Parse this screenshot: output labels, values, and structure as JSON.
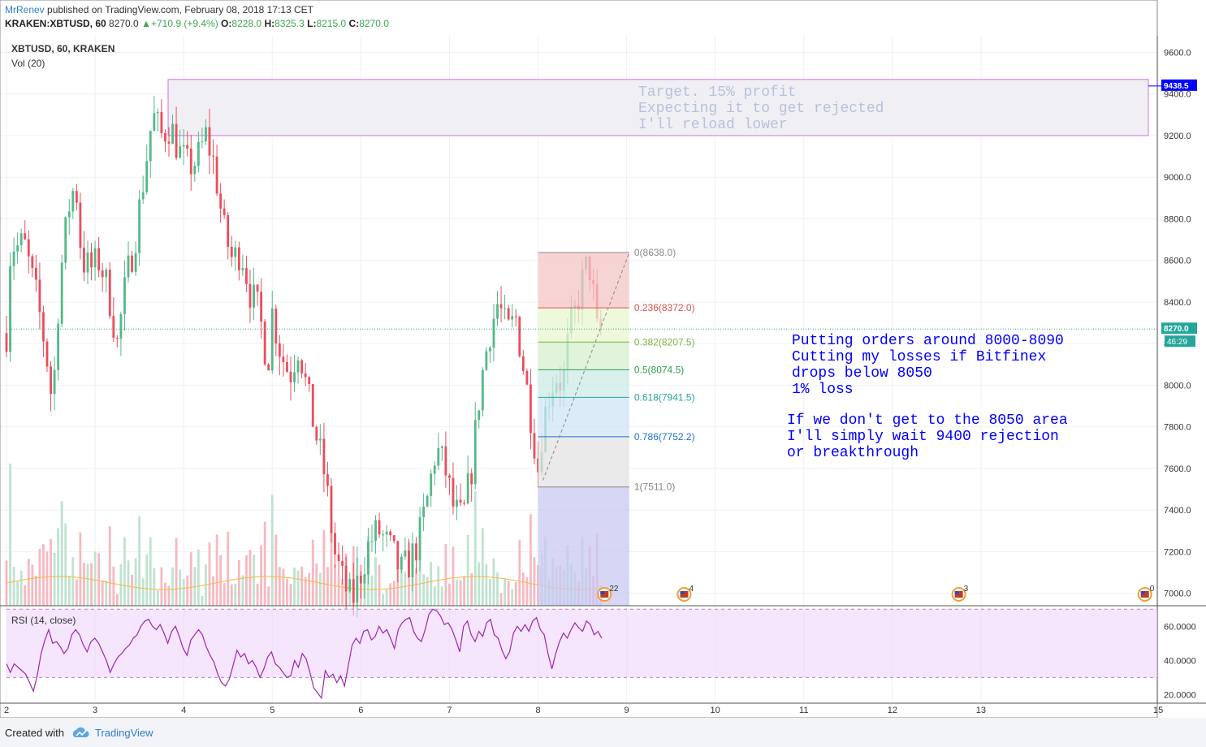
{
  "header": {
    "author": "MrRenev",
    "published_text": "published on TradingView.com, February 08, 2018 17:13 CET",
    "symbol": "KRAKEN:XBTUSD, 60",
    "last": "8270.0",
    "change": "+710.9 (+9.4%)",
    "ohlc": [
      {
        "label": "O:",
        "value": "8228.0"
      },
      {
        "label": "H:",
        "value": "8325.3"
      },
      {
        "label": "L:",
        "value": "8215.0"
      },
      {
        "label": "C:",
        "value": "8270.0"
      }
    ]
  },
  "legend": {
    "main_label": "XBTUSD, 60, KRAKEN",
    "vol_label": "Vol (20)",
    "rsi_label": "RSI (14, close)"
  },
  "footer": {
    "created_with": "Created with",
    "brand": "TradingView"
  },
  "colors": {
    "up": "#53b987",
    "down": "#eb4d5c",
    "rsi_line": "#9c27b0",
    "rsi_band": "#efd4fb",
    "annotation": "#0000ff",
    "target_text": "#b8c0dc",
    "last_price_tag": "#26a69a",
    "target_price_tag": "#0000ff"
  },
  "chart_data": {
    "type": "candlestick",
    "symbol": "XBTUSD",
    "interval": "60",
    "exchange": "KRAKEN",
    "y_ticks": [
      "9600.0",
      "9400.0",
      "9200.0",
      "9000.0",
      "8800.0",
      "8600.0",
      "8400.0",
      "8200.0",
      "8000.0",
      "7800.0",
      "7600.0",
      "7400.0",
      "7200.0",
      "7000.0"
    ],
    "ylim": [
      6940,
      9680
    ],
    "x_ticks": [
      "2",
      "3",
      "4",
      "5",
      "6",
      "7",
      "8",
      "9",
      "10",
      "11",
      "12",
      "13",
      "15"
    ],
    "x_day_values": [
      2,
      3,
      4,
      5,
      6,
      7,
      8,
      9,
      10,
      11,
      12,
      13,
      15
    ],
    "xlim": [
      2.0,
      14.99
    ],
    "close_path": [
      [
        2.0,
        8250
      ],
      [
        2.05,
        8700
      ],
      [
        2.1,
        8660
      ],
      [
        2.2,
        8680
      ],
      [
        2.35,
        8400
      ],
      [
        2.45,
        8150
      ],
      [
        2.52,
        7900
      ],
      [
        2.6,
        8500
      ],
      [
        2.7,
        8850
      ],
      [
        2.78,
        8980
      ],
      [
        2.85,
        8600
      ],
      [
        2.95,
        8560
      ],
      [
        3.05,
        8600
      ],
      [
        3.15,
        8450
      ],
      [
        3.25,
        8200
      ],
      [
        3.35,
        8500
      ],
      [
        3.45,
        8700
      ],
      [
        3.55,
        9000
      ],
      [
        3.65,
        9300
      ],
      [
        3.75,
        9200
      ],
      [
        3.85,
        9250
      ],
      [
        3.95,
        9120
      ],
      [
        4.05,
        9050
      ],
      [
        4.15,
        9080
      ],
      [
        4.25,
        9200
      ],
      [
        4.35,
        9050
      ],
      [
        4.45,
        8750
      ],
      [
        4.55,
        8600
      ],
      [
        4.65,
        8650
      ],
      [
        4.75,
        8450
      ],
      [
        4.85,
        8350
      ],
      [
        4.95,
        8100
      ],
      [
        5.0,
        8350
      ],
      [
        5.1,
        8150
      ],
      [
        5.2,
        8050
      ],
      [
        5.3,
        8200
      ],
      [
        5.4,
        7950
      ],
      [
        5.5,
        7750
      ],
      [
        5.6,
        7550
      ],
      [
        5.7,
        7200
      ],
      [
        5.8,
        7050
      ],
      [
        5.9,
        6960
      ],
      [
        6.0,
        7100
      ],
      [
        6.1,
        7250
      ],
      [
        6.2,
        7300
      ],
      [
        6.35,
        7200
      ],
      [
        6.45,
        7100
      ],
      [
        6.55,
        7150
      ],
      [
        6.65,
        7250
      ],
      [
        6.75,
        7450
      ],
      [
        6.85,
        7700
      ],
      [
        6.95,
        7600
      ],
      [
        7.05,
        7400
      ],
      [
        7.15,
        7350
      ],
      [
        7.25,
        7600
      ],
      [
        7.35,
        8000
      ],
      [
        7.45,
        8250
      ],
      [
        7.55,
        8400
      ],
      [
        7.65,
        8250
      ],
      [
        7.75,
        8320
      ],
      [
        7.85,
        8050
      ],
      [
        7.92,
        7850
      ],
      [
        8.0,
        7600
      ],
      [
        8.05,
        7800
      ],
      [
        8.12,
        7950
      ],
      [
        8.2,
        8050
      ],
      [
        8.28,
        8000
      ],
      [
        8.35,
        8250
      ],
      [
        8.42,
        8350
      ],
      [
        8.5,
        8500
      ],
      [
        8.57,
        8600
      ],
      [
        8.62,
        8450
      ],
      [
        8.67,
        8240
      ],
      [
        8.72,
        8270
      ]
    ],
    "high_marker": {
      "value": "9438.5"
    },
    "last_price": {
      "value": "8270.0",
      "countdown": "46:29"
    },
    "fibonacci_retracement": {
      "start": 7511.0,
      "end": 8638.0,
      "levels": [
        {
          "ratio": 0,
          "price": 8638.0,
          "label": "0(8638.0)",
          "color": "#888888",
          "fill": "#f4c6c6"
        },
        {
          "ratio": 0.236,
          "price": 8372.0,
          "label": "0.236(8372.0)",
          "color": "#e05050",
          "fill": "#e8f5cf"
        },
        {
          "ratio": 0.382,
          "price": 8207.5,
          "label": "0.382(8207.5)",
          "color": "#7cb342",
          "fill": "#d6f0d0"
        },
        {
          "ratio": 0.5,
          "price": 8074.5,
          "label": "0.5(8074.5)",
          "color": "#2e9e4e",
          "fill": "#ccebe6"
        },
        {
          "ratio": 0.618,
          "price": 7941.5,
          "label": "0.618(7941.5)",
          "color": "#26a69a",
          "fill": "#cfe6f6"
        },
        {
          "ratio": 0.786,
          "price": 7752.2,
          "label": "0.786(7752.2)",
          "color": "#1e6fd0",
          "fill": "#e3e3e3"
        },
        {
          "ratio": 1,
          "price": 7511.0,
          "label": "1(7511.0)",
          "color": "#888888",
          "fill": "#c9c8f2"
        }
      ]
    },
    "target_zone": {
      "top": 9470,
      "bottom": 9200
    },
    "annotations": {
      "target": [
        "Target. 15% profit",
        "Expecting it to get rejected",
        "I'll reload lower"
      ],
      "orders": [
        "Putting orders around 8000-8090",
        "Cutting my losses if Bitfinex",
        "drops below 8050",
        "1% loss"
      ],
      "fallback": [
        "If we don't get to the 8050 area",
        "I'll simply wait 9400 rejection",
        "or breakthrough"
      ]
    },
    "events": [
      {
        "day": 8.75,
        "count": "22"
      },
      {
        "day": 9.65,
        "count": "4"
      },
      {
        "day": 12.75,
        "count": "3"
      },
      {
        "day": 14.85,
        "count": "0"
      }
    ],
    "rsi": {
      "y_ticks": [
        "60.0000",
        "40.0000",
        "20.0000"
      ],
      "ylim": [
        15,
        72
      ],
      "overbought": 70,
      "oversold": 30,
      "values": [
        38,
        33,
        38,
        36,
        34,
        32,
        27,
        22,
        31,
        44,
        52,
        58,
        50,
        51,
        48,
        44,
        47,
        55,
        58,
        55,
        49,
        45,
        51,
        53,
        50,
        45,
        40,
        33,
        38,
        42,
        44,
        47,
        49,
        53,
        55,
        60,
        63,
        64,
        60,
        58,
        61,
        56,
        50,
        57,
        60,
        54,
        47,
        43,
        52,
        55,
        58,
        55,
        48,
        43,
        39,
        32,
        27,
        25,
        29,
        37,
        46,
        42,
        44,
        38,
        40,
        36,
        30,
        35,
        42,
        45,
        38,
        36,
        33,
        30,
        31,
        40,
        36,
        44,
        41,
        33,
        24,
        21,
        18,
        34,
        30,
        32,
        27,
        31,
        25,
        37,
        49,
        53,
        50,
        57,
        58,
        52,
        54,
        60,
        56,
        58,
        53,
        47,
        58,
        62,
        64,
        65,
        57,
        53,
        51,
        58,
        67,
        70,
        69,
        66,
        61,
        62,
        58,
        52,
        45,
        60,
        63,
        55,
        51,
        57,
        54,
        62,
        64,
        55,
        53,
        46,
        41,
        45,
        56,
        60,
        57,
        61,
        57,
        63,
        65,
        58,
        55,
        44,
        35,
        44,
        51,
        56,
        53,
        58,
        62,
        59,
        57,
        63,
        61,
        55,
        57,
        53
      ]
    }
  }
}
